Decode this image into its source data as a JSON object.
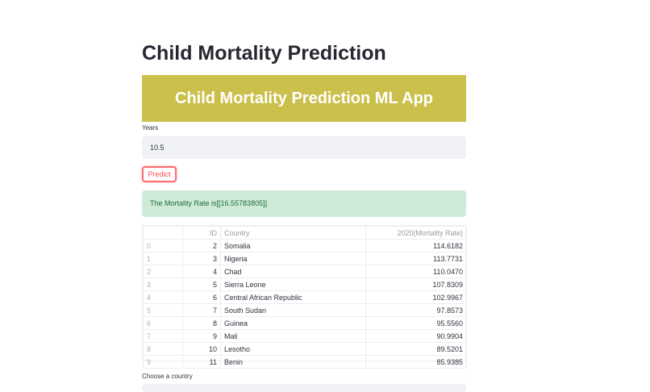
{
  "page": {
    "title": "Child Mortality Prediction"
  },
  "banner": {
    "text": "Child Mortality Prediction ML App",
    "color": "#cbc04b"
  },
  "years": {
    "label": "Years",
    "value": "10.5"
  },
  "predict_button": {
    "label": "Predict"
  },
  "result": {
    "text": "The Mortality Rate is[[16.55783805]]"
  },
  "table": {
    "columns": [
      "",
      "ID",
      "Country",
      "2020(Mortality Rate)"
    ],
    "rows": [
      [
        "0",
        "2",
        "Somalia",
        "114.6182"
      ],
      [
        "1",
        "3",
        "Nigeria",
        "113.7731"
      ],
      [
        "2",
        "4",
        "Chad",
        "110.0470"
      ],
      [
        "3",
        "5",
        "Sierra Leone",
        "107.8309"
      ],
      [
        "4",
        "6",
        "Central African Republic",
        "102.9967"
      ],
      [
        "5",
        "7",
        "South Sudan",
        "97.8573"
      ],
      [
        "6",
        "8",
        "Guinea",
        "95.5560"
      ],
      [
        "7",
        "9",
        "Mali",
        "90.9904"
      ],
      [
        "8",
        "10",
        "Lesotho",
        "89.5201"
      ],
      [
        "9",
        "11",
        "Benin",
        "85.9385"
      ]
    ]
  },
  "country_select": {
    "label": "Choose a country"
  }
}
